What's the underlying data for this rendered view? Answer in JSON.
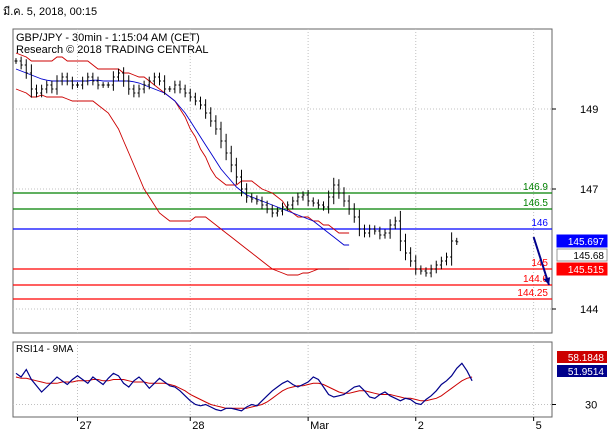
{
  "header": {
    "date_text": "มี.ค. 5, 2018, 00:15",
    "line1": "GBP/JPY - 30min - 1:15:04 AM (CET)",
    "line2": "Research © 2018 TRADING CENTRAL"
  },
  "chart_data": [
    {
      "type": "line",
      "title": "GBP/JPY - 30min - 1:15:04 AM (CET)",
      "subtitle": "Research © 2018 TRADING CENTRAL",
      "ylim": [
        143.4,
        151.0
      ],
      "y_ticks": [
        {
          "value": 149,
          "label": "149"
        },
        {
          "value": 147,
          "label": "147"
        },
        {
          "value": 144,
          "label": "144"
        }
      ],
      "x_ticks": [
        {
          "index": 12,
          "label": "27"
        },
        {
          "index": 34,
          "label": "28"
        },
        {
          "index": 57,
          "label": "Mar"
        },
        {
          "index": 78,
          "label": "2"
        },
        {
          "index": 101,
          "label": "5"
        }
      ],
      "grid": true,
      "price": [
        150.2,
        150.1,
        149.9,
        149.5,
        149.4,
        149.5,
        149.6,
        149.5,
        149.7,
        149.8,
        149.7,
        149.6,
        149.6,
        149.7,
        149.8,
        149.7,
        149.6,
        149.6,
        149.6,
        149.8,
        149.9,
        149.7,
        149.5,
        149.4,
        149.5,
        149.6,
        149.7,
        149.8,
        149.7,
        149.5,
        149.5,
        149.6,
        149.5,
        149.4,
        149.3,
        149.2,
        149.1,
        148.9,
        148.7,
        148.5,
        148.2,
        147.9,
        147.6,
        147.3,
        147.0,
        146.8,
        146.75,
        146.7,
        146.6,
        146.5,
        146.4,
        146.45,
        146.55,
        146.6,
        146.7,
        146.8,
        146.85,
        146.7,
        146.65,
        146.6,
        146.55,
        146.8,
        147.1,
        146.9,
        146.7,
        146.5,
        146.3,
        146.0,
        145.9,
        146.0,
        145.95,
        145.85,
        145.9,
        146.1,
        146.2,
        145.7,
        145.4,
        145.2,
        145.0,
        144.95,
        144.9,
        145.0,
        145.1,
        145.2,
        145.3,
        145.7,
        145.68
      ],
      "ma": [
        150.0,
        149.95,
        149.9,
        149.85,
        149.8,
        149.75,
        149.72,
        149.7,
        149.7,
        149.7,
        149.7,
        149.7,
        149.7,
        149.7,
        149.7,
        149.72,
        149.72,
        149.7,
        149.7,
        149.7,
        149.7,
        149.7,
        149.7,
        149.68,
        149.65,
        149.6,
        149.55,
        149.5,
        149.45,
        149.4,
        149.3,
        149.2,
        149.05,
        148.9,
        148.7,
        148.5,
        148.3,
        148.1,
        147.9,
        147.7,
        147.5,
        147.35,
        147.2,
        147.05,
        146.95,
        146.85,
        146.8,
        146.75,
        146.7,
        146.65,
        146.6,
        146.55,
        146.5,
        146.45,
        146.4,
        146.35,
        146.3,
        146.25,
        146.2,
        146.1,
        146.0,
        145.9,
        145.8,
        145.7,
        145.6,
        145.6
      ],
      "bb_upper": [
        150.4,
        150.35,
        150.3,
        150.2,
        150.2,
        150.2,
        150.2,
        150.2,
        150.3,
        150.3,
        150.2,
        150.2,
        150.2,
        150.2,
        150.2,
        150.1,
        150.0,
        150.0,
        150.0,
        150.0,
        150.0,
        149.9,
        149.9,
        149.85,
        149.8,
        149.8,
        149.7,
        149.6,
        149.5,
        149.4,
        149.3,
        149.2,
        149.0,
        148.8,
        148.5,
        148.3,
        148.0,
        147.8,
        147.5,
        147.3,
        147.2,
        147.1,
        147.1,
        147.1,
        147.2,
        147.2,
        147.2,
        147.1,
        147.0,
        146.95,
        146.9,
        146.8,
        146.7,
        146.5,
        146.4,
        146.3,
        146.3,
        146.3,
        146.2,
        146.2,
        146.1,
        146.1,
        146.0,
        145.9,
        145.9,
        145.9
      ],
      "bb_lower": [
        149.5,
        149.45,
        149.4,
        149.3,
        149.3,
        149.35,
        149.3,
        149.3,
        149.3,
        149.3,
        149.25,
        149.2,
        149.2,
        149.2,
        149.2,
        149.2,
        149.1,
        149.0,
        148.9,
        148.7,
        148.5,
        148.2,
        147.9,
        147.6,
        147.3,
        147.0,
        146.8,
        146.6,
        146.4,
        146.3,
        146.2,
        146.2,
        146.2,
        146.2,
        146.2,
        146.3,
        146.3,
        146.3,
        146.2,
        146.1,
        146.0,
        145.9,
        145.8,
        145.7,
        145.6,
        145.5,
        145.4,
        145.3,
        145.2,
        145.1,
        145.0,
        144.95,
        144.9,
        144.85,
        144.85,
        144.85,
        144.9,
        144.9,
        144.95,
        145.0,
        145.0,
        145.0,
        145.0,
        145.0,
        145.0,
        145.0
      ],
      "levels": [
        {
          "value": 146.9,
          "label": "146.9",
          "color": "#008000"
        },
        {
          "value": 146.5,
          "label": "146.5",
          "color": "#008000"
        },
        {
          "value": 146.0,
          "label": "146",
          "color": "#0000ff"
        },
        {
          "value": 145.0,
          "label": "145",
          "color": "#ff0000"
        },
        {
          "value": 144.6,
          "label": "144.6",
          "color": "#ff0000"
        },
        {
          "value": 144.25,
          "label": "144.25",
          "color": "#ff0000"
        }
      ],
      "price_flags": [
        {
          "label": "145.697",
          "value": 145.697,
          "color": "#0000ff",
          "text_color": "#ffffff"
        },
        {
          "label": "145.68",
          "value": 145.68,
          "color": "#ffffff",
          "text_color": "#000000"
        },
        {
          "label": "145.515",
          "value": 145.515,
          "color": "#ff0000",
          "text_color": "#ffffff"
        }
      ],
      "arrow": {
        "from": [
          101,
          145.8
        ],
        "to": [
          104,
          144.6
        ],
        "color": "#00008b"
      }
    },
    {
      "type": "line",
      "title": "RSI14 - 9MA",
      "ylim": [
        20,
        80
      ],
      "y_ticks": [
        {
          "value": 30,
          "label": "30"
        }
      ],
      "rsi": [
        55,
        52,
        58,
        50,
        45,
        40,
        44,
        48,
        52,
        49,
        46,
        50,
        53,
        50,
        47,
        52,
        49,
        46,
        51,
        55,
        53,
        47,
        44,
        49,
        52,
        48,
        43,
        47,
        51,
        48,
        45,
        44,
        41,
        37,
        33,
        30,
        29,
        30,
        28,
        26,
        25,
        27,
        27,
        26,
        25,
        28,
        30,
        29,
        33,
        37,
        41,
        44,
        47,
        49,
        46,
        44,
        46,
        48,
        52,
        50,
        44,
        38,
        36,
        37,
        38,
        41,
        44,
        45,
        41,
        36,
        35,
        38,
        40,
        37,
        35,
        33,
        35,
        34,
        31,
        30,
        34,
        37,
        41,
        46,
        49,
        53,
        59,
        63,
        57,
        49
      ],
      "ma9": [
        52,
        51,
        51,
        50,
        49,
        48,
        47,
        47,
        47,
        48,
        48,
        48,
        49,
        49,
        49,
        50,
        50,
        49,
        49,
        50,
        50,
        50,
        49,
        48,
        48,
        48,
        47,
        47,
        47,
        47,
        46,
        45,
        43,
        41,
        38,
        36,
        34,
        32,
        30,
        29,
        28,
        27,
        27,
        27,
        27,
        27,
        28,
        29,
        30,
        32,
        35,
        38,
        41,
        43,
        44,
        45,
        45,
        46,
        47,
        47,
        46,
        44,
        42,
        40,
        39,
        39,
        40,
        41,
        41,
        40,
        39,
        38,
        38,
        38,
        37,
        36,
        35,
        35,
        34,
        33,
        33,
        34,
        35,
        37,
        40,
        43,
        46,
        49,
        51,
        52
      ],
      "flags": [
        {
          "label": "58.1848",
          "value": 58.1848,
          "color": "#cc0000",
          "text_color": "#ffffff"
        },
        {
          "label": "51.9514",
          "value": 51.9514,
          "color": "#00008b",
          "text_color": "#ffffff"
        }
      ]
    }
  ],
  "colors": {
    "price": "#000000",
    "ma": "#0000cc",
    "bb": "#cc0000",
    "rsi": "#00008b",
    "rsi_ma": "#cc0000",
    "grid": "#c0c0c0",
    "frame": "#666666"
  }
}
